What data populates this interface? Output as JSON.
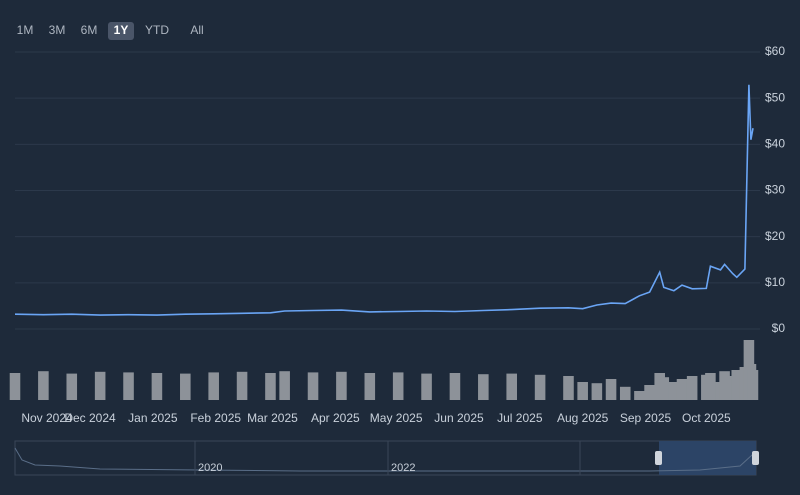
{
  "range_selector": {
    "buttons": [
      "1M",
      "3M",
      "6M",
      "1Y",
      "YTD",
      "All"
    ],
    "selected": "1Y"
  },
  "chart_data": {
    "type": "line",
    "x": [
      "2024-10-25",
      "2024-11-08",
      "2024-11-22",
      "2024-12-06",
      "2024-12-20",
      "2025-01-03",
      "2025-01-17",
      "2025-01-31",
      "2025-02-14",
      "2025-02-28",
      "2025-03-07",
      "2025-03-21",
      "2025-04-04",
      "2025-04-18",
      "2025-05-02",
      "2025-05-16",
      "2025-05-30",
      "2025-06-13",
      "2025-06-27",
      "2025-07-11",
      "2025-07-25",
      "2025-08-01",
      "2025-08-08",
      "2025-08-15",
      "2025-08-22",
      "2025-08-29",
      "2025-09-03",
      "2025-09-08",
      "2025-09-10",
      "2025-09-15",
      "2025-09-19",
      "2025-09-24",
      "2025-10-01",
      "2025-10-03",
      "2025-10-08",
      "2025-10-10",
      "2025-10-14",
      "2025-10-16",
      "2025-10-20",
      "2025-10-22",
      "2025-10-23",
      "2025-10-24"
    ],
    "series": [
      {
        "color": "#6aa5f5",
        "values": [
          3.2,
          3.1,
          3.2,
          3.0,
          3.1,
          3.0,
          3.2,
          3.3,
          3.4,
          3.5,
          3.9,
          4.0,
          4.1,
          3.7,
          3.8,
          3.9,
          3.8,
          4.0,
          4.2,
          4.5,
          4.6,
          4.4,
          5.2,
          5.6,
          5.5,
          7.2,
          8.0,
          12.3,
          9.0,
          8.3,
          9.5,
          8.7,
          8.8,
          13.6,
          12.8,
          14.0,
          12.0,
          11.2,
          13.0,
          52.9,
          41.0,
          43.5
        ]
      },
      {
        "color": "#8d9299",
        "volume": true,
        "values": [
          45,
          48,
          44,
          47,
          46,
          45,
          44,
          46,
          47,
          45,
          48,
          46,
          47,
          45,
          46,
          44,
          45,
          43,
          44,
          42,
          40,
          30,
          28,
          35,
          22,
          15,
          25,
          45,
          38,
          30,
          35,
          40,
          42,
          45,
          30,
          48,
          40,
          50,
          55,
          100,
          60,
          50
        ]
      }
    ],
    "xlim": [
      "2024-10-25",
      "2025-10-25"
    ],
    "xticks": [
      {
        "value": "2024-11",
        "label": "Nov 2024"
      },
      {
        "value": "2024-12",
        "label": "Dec 2024"
      },
      {
        "value": "2025-01",
        "label": "Jan 2025"
      },
      {
        "value": "2025-02",
        "label": "Feb 2025"
      },
      {
        "value": "2025-03",
        "label": "Mar 2025"
      },
      {
        "value": "2025-04",
        "label": "Apr 2025"
      },
      {
        "value": "2025-05",
        "label": "May 2025"
      },
      {
        "value": "2025-06",
        "label": "Jun 2025"
      },
      {
        "value": "2025-07",
        "label": "Jul 2025"
      },
      {
        "value": "2025-08",
        "label": "Aug 2025"
      },
      {
        "value": "2025-09",
        "label": "Sep 2025"
      },
      {
        "value": "2025-10",
        "label": "Oct 2025"
      }
    ],
    "ylim": [
      0,
      60
    ],
    "yticks": [
      {
        "value": 0,
        "label": "$0"
      },
      {
        "value": 10,
        "label": "$10"
      },
      {
        "value": 20,
        "label": "$20"
      },
      {
        "value": 30,
        "label": "$30"
      },
      {
        "value": 40,
        "label": "$40"
      },
      {
        "value": 50,
        "label": "$50"
      },
      {
        "value": 60,
        "label": "$60"
      }
    ],
    "grid": true,
    "navigator_labels": [
      "2020",
      "2022"
    ]
  }
}
